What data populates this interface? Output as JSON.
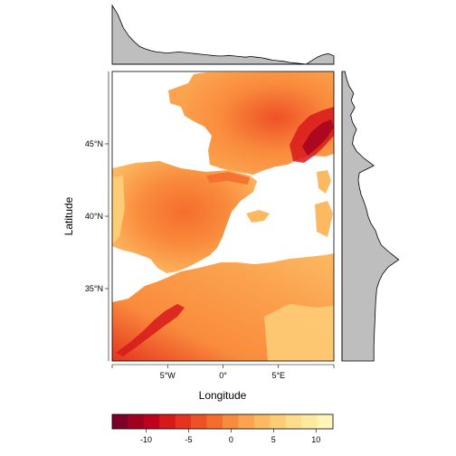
{
  "chart_data": {
    "type": "heatmap",
    "title": "",
    "xlabel": "Longitude",
    "ylabel": "Latitude",
    "xlim": [
      -10,
      10
    ],
    "ylim": [
      30,
      50
    ],
    "x_ticks": [
      {
        "value": -5,
        "label": "5°W"
      },
      {
        "value": 0,
        "label": "0°"
      },
      {
        "value": 5,
        "label": "5°E"
      }
    ],
    "y_ticks": [
      {
        "value": 35,
        "label": "35°N"
      },
      {
        "value": 40,
        "label": "40°N"
      },
      {
        "value": 45,
        "label": "45°N"
      }
    ],
    "colorbar": {
      "min": -14,
      "max": 12,
      "ticks": [
        {
          "value": -10,
          "label": "-10"
        },
        {
          "value": -5,
          "label": "-5"
        },
        {
          "value": 0,
          "label": "0"
        },
        {
          "value": 5,
          "label": "5"
        },
        {
          "value": 10,
          "label": "10"
        }
      ],
      "colors": [
        "#7f0026",
        "#a1001f",
        "#c0001d",
        "#d7191c",
        "#e4341f",
        "#ef5127",
        "#f56d2d",
        "#f98b3c",
        "#fba34f",
        "#fcb962",
        "#fdcc75",
        "#fedc89",
        "#fee99f",
        "#fff5b8"
      ]
    },
    "top_profile": {
      "x": [
        -10,
        -9.5,
        -9,
        -8.5,
        -8,
        -7.5,
        -7,
        -6.5,
        -6,
        -5.5,
        -5,
        -4.5,
        -4,
        -3.5,
        -3,
        -2.5,
        -2,
        -1.5,
        -1,
        -0.5,
        0,
        0.5,
        1,
        1.5,
        2,
        2.5,
        3,
        3.5,
        4,
        4.5,
        5,
        5.5,
        6,
        6.5,
        7,
        7.5,
        8,
        8.5,
        9,
        9.5,
        10
      ],
      "values": [
        1.0,
        0.85,
        0.62,
        0.48,
        0.38,
        0.3,
        0.26,
        0.23,
        0.21,
        0.2,
        0.19,
        0.2,
        0.21,
        0.2,
        0.19,
        0.18,
        0.17,
        0.16,
        0.15,
        0.14,
        0.14,
        0.15,
        0.14,
        0.13,
        0.12,
        0.13,
        0.12,
        0.11,
        0.09,
        0.07,
        0.06,
        0.05,
        0.03,
        0.02,
        0.01,
        0.0,
        0.06,
        0.12,
        0.16,
        0.18,
        0.14
      ]
    },
    "right_profile": {
      "y": [
        30,
        31,
        32,
        33,
        34,
        35,
        35.5,
        36,
        36.5,
        37,
        37.5,
        38,
        38.5,
        39,
        39.5,
        40,
        40.5,
        41,
        41.5,
        42,
        42.5,
        43,
        43.5,
        44,
        44.5,
        45,
        45.5,
        46,
        46.5,
        47,
        47.5,
        48,
        48.5,
        49,
        49.5,
        50
      ],
      "values": [
        0.55,
        0.55,
        0.56,
        0.57,
        0.58,
        0.6,
        0.64,
        0.7,
        0.8,
        0.98,
        0.82,
        0.68,
        0.62,
        0.58,
        0.5,
        0.45,
        0.42,
        0.38,
        0.33,
        0.3,
        0.28,
        0.3,
        0.55,
        0.38,
        0.25,
        0.18,
        0.2,
        0.25,
        0.18,
        0.15,
        0.22,
        0.16,
        0.2,
        0.12,
        0.08,
        0.05
      ]
    }
  }
}
